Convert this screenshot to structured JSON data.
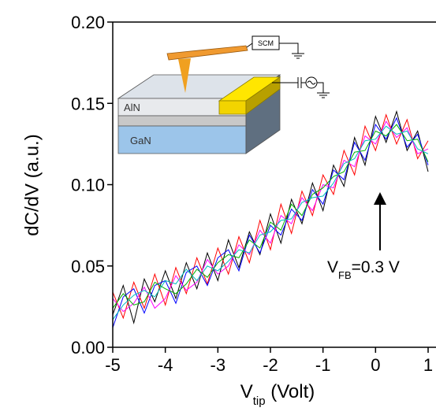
{
  "chart_data": {
    "type": "line",
    "xlabel": {
      "main": "V",
      "sub": "tip",
      "rest": " (Volt)"
    },
    "ylabel": "dC/dV (a.u.)",
    "annotation": {
      "main": "V",
      "sub": "FB",
      "rest": "=0.3 V"
    },
    "inset_labels": {
      "scm": "SCM",
      "top_layer": "AlN",
      "bottom_layer": "GaN"
    },
    "xlim": [
      -5,
      1.15
    ],
    "ylim": [
      0,
      0.2
    ],
    "xticks": [
      -5,
      -4,
      -3,
      -2,
      -1,
      0,
      1
    ],
    "yticks": [
      {
        "value": 0,
        "label": "0.00"
      },
      0.05,
      {
        "value": 0.1,
        "label": "0.10"
      },
      0.15,
      {
        "value": 0.2,
        "label": "0.20"
      }
    ],
    "x": [
      -5.0,
      -4.8,
      -4.6,
      -4.4,
      -4.2,
      -4.0,
      -3.8,
      -3.6,
      -3.4,
      -3.2,
      -3.0,
      -2.8,
      -2.6,
      -2.4,
      -2.2,
      -2.0,
      -1.8,
      -1.6,
      -1.4,
      -1.2,
      -1.0,
      -0.8,
      -0.6,
      -0.4,
      -0.2,
      0.0,
      0.2,
      0.4,
      0.6,
      0.8,
      1.0
    ],
    "series": [
      {
        "color": "#000000",
        "values": [
          0.02,
          0.038,
          0.015,
          0.042,
          0.028,
          0.047,
          0.03,
          0.052,
          0.036,
          0.058,
          0.041,
          0.066,
          0.049,
          0.071,
          0.057,
          0.082,
          0.064,
          0.091,
          0.076,
          0.101,
          0.084,
          0.112,
          0.099,
          0.129,
          0.112,
          0.142,
          0.126,
          0.145,
          0.121,
          0.133,
          0.108
        ]
      },
      {
        "color": "#ff0000",
        "values": [
          0.034,
          0.018,
          0.04,
          0.024,
          0.045,
          0.026,
          0.049,
          0.033,
          0.055,
          0.039,
          0.061,
          0.045,
          0.068,
          0.052,
          0.078,
          0.06,
          0.088,
          0.07,
          0.096,
          0.081,
          0.106,
          0.094,
          0.121,
          0.106,
          0.136,
          0.121,
          0.143,
          0.125,
          0.14,
          0.116,
          0.127
        ]
      },
      {
        "color": "#0000ff",
        "values": [
          0.012,
          0.031,
          0.036,
          0.021,
          0.038,
          0.041,
          0.027,
          0.046,
          0.05,
          0.038,
          0.055,
          0.06,
          0.047,
          0.069,
          0.058,
          0.075,
          0.069,
          0.085,
          0.078,
          0.097,
          0.088,
          0.109,
          0.103,
          0.126,
          0.115,
          0.137,
          0.128,
          0.141,
          0.123,
          0.131,
          0.112
        ]
      },
      {
        "color": "#ff00ff",
        "values": [
          0.03,
          0.022,
          0.027,
          0.037,
          0.024,
          0.03,
          0.044,
          0.035,
          0.04,
          0.054,
          0.045,
          0.05,
          0.063,
          0.057,
          0.072,
          0.064,
          0.081,
          0.076,
          0.092,
          0.084,
          0.1,
          0.098,
          0.115,
          0.111,
          0.13,
          0.125,
          0.139,
          0.129,
          0.135,
          0.119,
          0.122
        ]
      },
      {
        "color": "#00b000",
        "values": [
          0.024,
          0.033,
          0.026,
          0.028,
          0.04,
          0.036,
          0.033,
          0.039,
          0.048,
          0.043,
          0.052,
          0.057,
          0.055,
          0.066,
          0.061,
          0.077,
          0.072,
          0.088,
          0.081,
          0.094,
          0.098,
          0.105,
          0.108,
          0.12,
          0.121,
          0.133,
          0.13,
          0.137,
          0.127,
          0.128,
          0.114
        ]
      },
      {
        "color": "#00bcbc",
        "values": [
          0.017,
          0.026,
          0.032,
          0.035,
          0.031,
          0.041,
          0.039,
          0.048,
          0.041,
          0.05,
          0.047,
          0.053,
          0.06,
          0.058,
          0.069,
          0.071,
          0.078,
          0.079,
          0.089,
          0.092,
          0.093,
          0.101,
          0.113,
          0.116,
          0.127,
          0.128,
          0.136,
          0.131,
          0.133,
          0.122,
          0.119
        ]
      }
    ]
  }
}
